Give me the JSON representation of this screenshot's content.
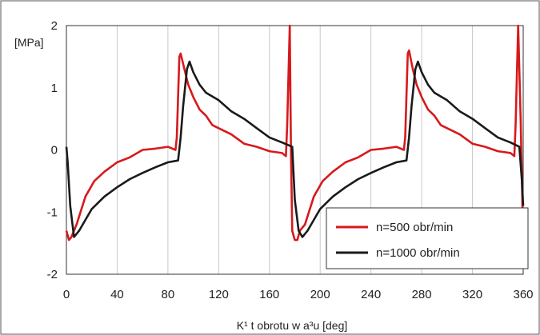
{
  "chart_data": {
    "type": "line",
    "title": "",
    "xlabel": "K¹ t obrotu w a³u [deg]",
    "ylabel": "[MPa]",
    "xlim": [
      0,
      360
    ],
    "ylim": [
      -2,
      2
    ],
    "x_ticks": [
      0,
      40,
      80,
      120,
      160,
      200,
      240,
      280,
      320,
      360
    ],
    "y_ticks": [
      2,
      1,
      0,
      -1,
      -2
    ],
    "grid": "vertical",
    "legend_placement": "bottom-right",
    "series": [
      {
        "name": "n=500 obr/min",
        "color": "#d7191c",
        "points": [
          [
            0,
            -1.3
          ],
          [
            2,
            -1.45
          ],
          [
            4,
            -1.4
          ],
          [
            8,
            -1.2
          ],
          [
            15,
            -0.75
          ],
          [
            22,
            -0.5
          ],
          [
            30,
            -0.35
          ],
          [
            40,
            -0.2
          ],
          [
            50,
            -0.12
          ],
          [
            60,
            0.0
          ],
          [
            70,
            0.02
          ],
          [
            80,
            0.05
          ],
          [
            86,
            0.0
          ],
          [
            87,
            0.2
          ],
          [
            89,
            1.5
          ],
          [
            90,
            1.55
          ],
          [
            93,
            1.3
          ],
          [
            96,
            1.05
          ],
          [
            100,
            0.85
          ],
          [
            105,
            0.65
          ],
          [
            110,
            0.55
          ],
          [
            115,
            0.4
          ],
          [
            120,
            0.35
          ],
          [
            130,
            0.25
          ],
          [
            140,
            0.1
          ],
          [
            150,
            0.05
          ],
          [
            160,
            -0.02
          ],
          [
            170,
            -0.05
          ],
          [
            173,
            -0.1
          ],
          [
            174,
            0.4
          ],
          [
            176,
            2.0
          ],
          [
            177,
            0.0
          ],
          [
            178,
            -1.3
          ],
          [
            180,
            -1.45
          ],
          [
            182,
            -1.45
          ],
          [
            184,
            -1.3
          ],
          [
            188,
            -1.2
          ],
          [
            195,
            -0.75
          ],
          [
            202,
            -0.5
          ],
          [
            210,
            -0.35
          ],
          [
            220,
            -0.2
          ],
          [
            230,
            -0.12
          ],
          [
            240,
            0.0
          ],
          [
            250,
            0.02
          ],
          [
            260,
            0.05
          ],
          [
            266,
            0.0
          ],
          [
            267,
            0.2
          ],
          [
            269,
            1.55
          ],
          [
            270,
            1.6
          ],
          [
            273,
            1.3
          ],
          [
            276,
            1.05
          ],
          [
            280,
            0.85
          ],
          [
            285,
            0.65
          ],
          [
            290,
            0.55
          ],
          [
            295,
            0.4
          ],
          [
            300,
            0.35
          ],
          [
            310,
            0.25
          ],
          [
            320,
            0.1
          ],
          [
            330,
            0.05
          ],
          [
            340,
            -0.02
          ],
          [
            350,
            -0.05
          ],
          [
            353,
            -0.1
          ],
          [
            354,
            0.4
          ],
          [
            356,
            2.0
          ],
          [
            358,
            0.5
          ],
          [
            360,
            -1.5
          ]
        ]
      },
      {
        "name": "n=1000 obr/min",
        "color": "#1a1a1a",
        "points": [
          [
            0,
            0.05
          ],
          [
            1,
            -0.2
          ],
          [
            3,
            -0.9
          ],
          [
            6,
            -1.4
          ],
          [
            10,
            -1.3
          ],
          [
            20,
            -0.95
          ],
          [
            30,
            -0.75
          ],
          [
            40,
            -0.6
          ],
          [
            50,
            -0.47
          ],
          [
            60,
            -0.37
          ],
          [
            70,
            -0.28
          ],
          [
            80,
            -0.2
          ],
          [
            88,
            -0.17
          ],
          [
            90,
            0.2
          ],
          [
            92,
            0.7
          ],
          [
            95,
            1.3
          ],
          [
            97,
            1.42
          ],
          [
            100,
            1.25
          ],
          [
            105,
            1.05
          ],
          [
            110,
            0.92
          ],
          [
            120,
            0.8
          ],
          [
            130,
            0.62
          ],
          [
            140,
            0.5
          ],
          [
            150,
            0.35
          ],
          [
            160,
            0.2
          ],
          [
            170,
            0.12
          ],
          [
            178,
            0.05
          ],
          [
            180,
            -0.8
          ],
          [
            183,
            -1.3
          ],
          [
            186,
            -1.4
          ],
          [
            190,
            -1.3
          ],
          [
            200,
            -0.95
          ],
          [
            210,
            -0.75
          ],
          [
            220,
            -0.6
          ],
          [
            230,
            -0.47
          ],
          [
            240,
            -0.37
          ],
          [
            250,
            -0.28
          ],
          [
            260,
            -0.2
          ],
          [
            268,
            -0.17
          ],
          [
            270,
            0.2
          ],
          [
            272,
            0.7
          ],
          [
            275,
            1.3
          ],
          [
            277,
            1.42
          ],
          [
            280,
            1.25
          ],
          [
            285,
            1.05
          ],
          [
            290,
            0.92
          ],
          [
            300,
            0.8
          ],
          [
            310,
            0.62
          ],
          [
            320,
            0.5
          ],
          [
            330,
            0.35
          ],
          [
            340,
            0.2
          ],
          [
            350,
            0.12
          ],
          [
            357,
            0.05
          ],
          [
            359,
            -0.5
          ],
          [
            360,
            -0.9
          ]
        ]
      }
    ]
  }
}
